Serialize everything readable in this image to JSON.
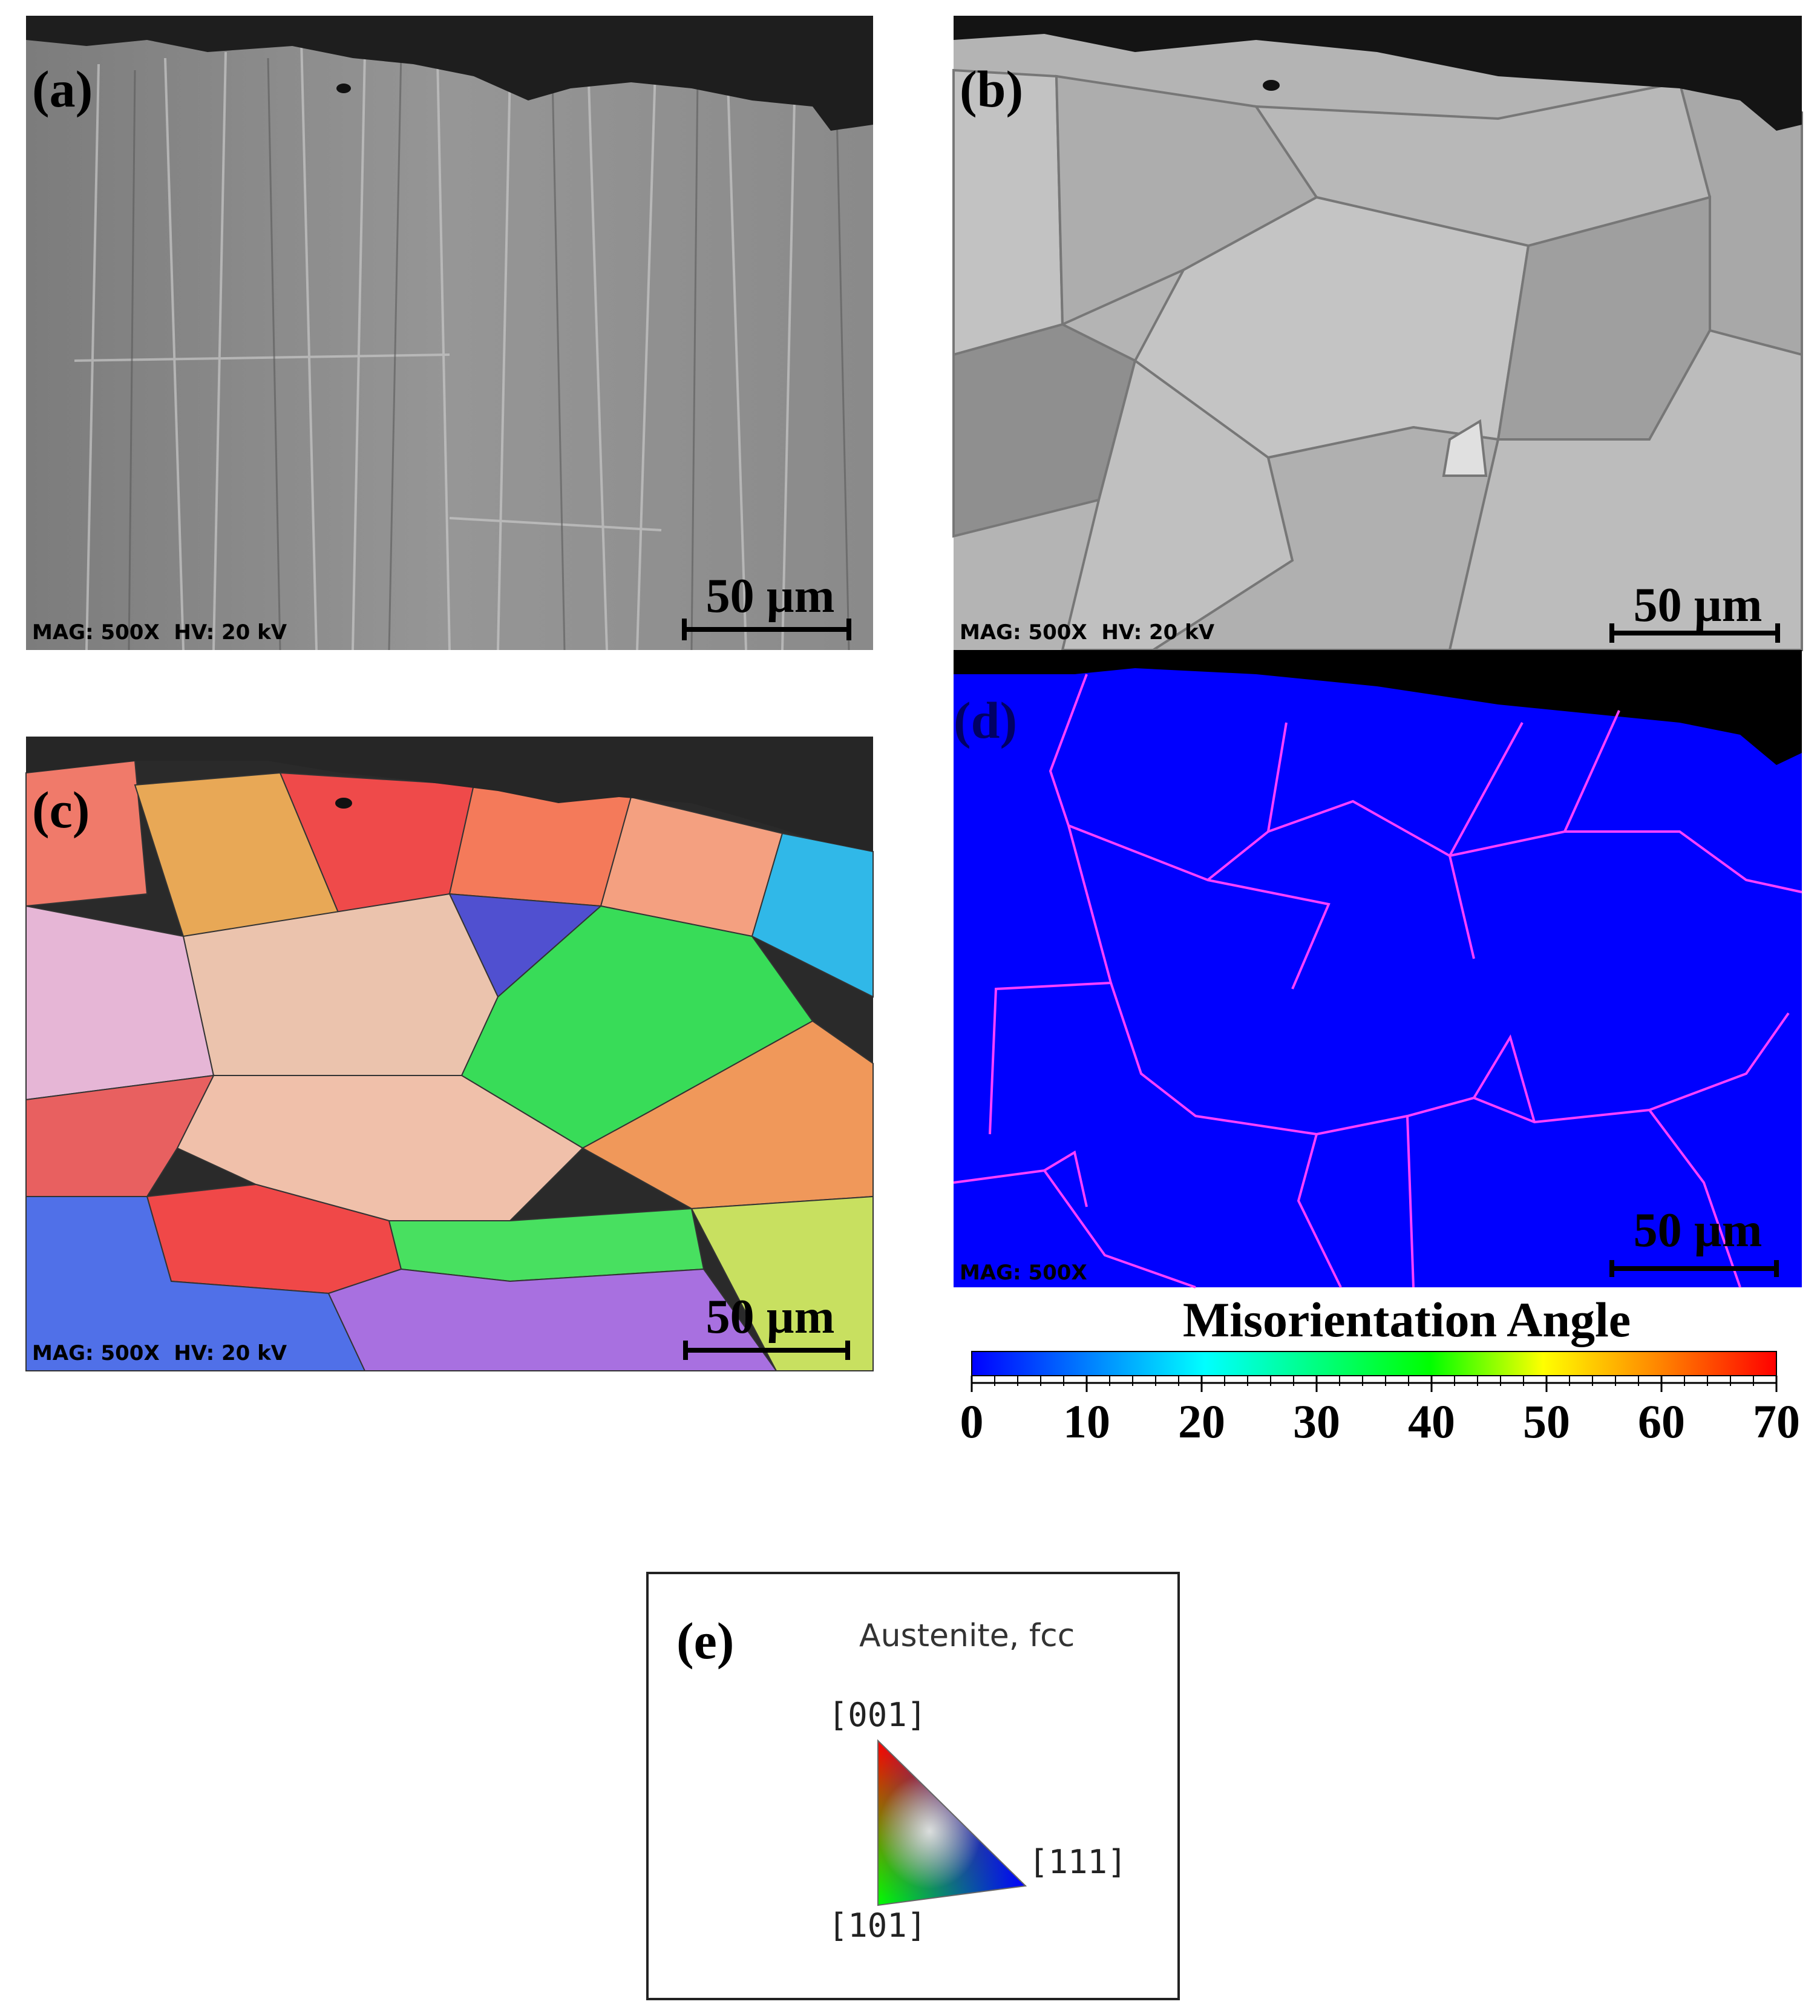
{
  "panels": [
    {
      "label": "(a)",
      "info": "MAG: 500X  HV: 20 kV",
      "scale_bar": "50 µm"
    },
    {
      "label": "(b)",
      "info": "MAG: 500X  HV: 20 kV",
      "scale_bar": "50 µm"
    },
    {
      "label": "(c)",
      "info": "MAG: 500X  HV: 20 kV",
      "scale_bar": "50 µm"
    },
    {
      "label": "(d)",
      "info": "MAG: 500X",
      "scale_bar": "50 µm"
    }
  ],
  "colorbar": {
    "title": "Misorientation Angle",
    "range": [
      0,
      70
    ],
    "ticks": [
      0,
      10,
      20,
      30,
      40,
      50,
      60,
      70
    ]
  },
  "legend": {
    "label": "(e)",
    "phase": "Austenite, fcc",
    "directions": [
      "[001]",
      "[111]",
      "[101]"
    ]
  }
}
